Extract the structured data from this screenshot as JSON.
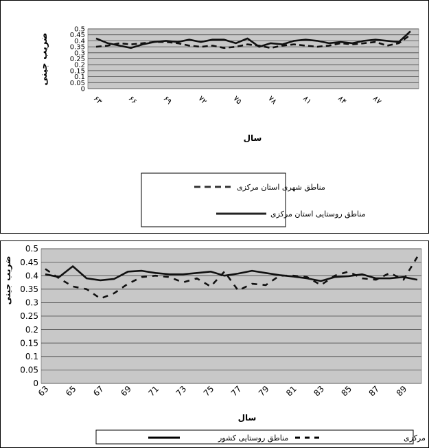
{
  "chart_data": [
    {
      "type": "line",
      "title": "",
      "xlabel": "سال",
      "ylabel": "ضریب جینی",
      "ylim": [
        0,
        0.5
      ],
      "grid": true,
      "yticks": [
        "0",
        "0.05",
        "0.1",
        "0.15",
        "0.2",
        "0.25",
        "0.3",
        "0.35",
        "0.4",
        "0.45",
        "0.5"
      ],
      "xticks": [
        "۶۳",
        "۶۶",
        "۶۹",
        "۷۲",
        "۷۵",
        "۷۸",
        "۸۱",
        "۸۴",
        "۸۷"
      ],
      "x": [
        63,
        64,
        65,
        66,
        67,
        68,
        69,
        70,
        71,
        72,
        73,
        74,
        75,
        76,
        77,
        78,
        79,
        80,
        81,
        82,
        83,
        84,
        85,
        86,
        87,
        88,
        89,
        90
      ],
      "legend_position": "bottom",
      "series": [
        {
          "name": "مناطق شهری استان مرکزی",
          "style": "dashed",
          "values": [
            0.35,
            0.36,
            0.38,
            0.37,
            0.38,
            0.39,
            0.39,
            0.38,
            0.36,
            0.35,
            0.36,
            0.34,
            0.35,
            0.37,
            0.36,
            0.34,
            0.36,
            0.37,
            0.36,
            0.35,
            0.36,
            0.38,
            0.37,
            0.38,
            0.39,
            0.36,
            0.38,
            0.45
          ]
        },
        {
          "name": "مناطق روستایی استان مرکزی",
          "style": "solid",
          "values": [
            0.42,
            0.38,
            0.36,
            0.34,
            0.37,
            0.39,
            0.4,
            0.39,
            0.41,
            0.39,
            0.41,
            0.41,
            0.38,
            0.42,
            0.35,
            0.38,
            0.37,
            0.4,
            0.41,
            0.4,
            0.38,
            0.39,
            0.38,
            0.4,
            0.41,
            0.4,
            0.39,
            0.48
          ]
        }
      ]
    },
    {
      "type": "line",
      "title": "",
      "xlabel": "سال",
      "ylabel": "ضریب جینی",
      "ylim": [
        0,
        0.5
      ],
      "grid": true,
      "yticks": [
        "0",
        "0.05",
        "0.1",
        "0.15",
        "0.2",
        "0.25",
        "0.3",
        "0.35",
        "0.4",
        "0.45",
        "0.5"
      ],
      "xticks": [
        "63",
        "65",
        "67",
        "69",
        "71",
        "73",
        "75",
        "77",
        "79",
        "81",
        "83",
        "85",
        "87",
        "89"
      ],
      "x": [
        63,
        64,
        65,
        66,
        67,
        68,
        69,
        70,
        71,
        72,
        73,
        74,
        75,
        76,
        77,
        78,
        79,
        80,
        81,
        82,
        83,
        84,
        85,
        86,
        87,
        88,
        89,
        90
      ],
      "legend_position": "bottom",
      "series": [
        {
          "name": "مناطق روستایی کشور",
          "style": "solid",
          "values": [
            0.405,
            0.395,
            0.435,
            0.39,
            0.383,
            0.388,
            0.415,
            0.418,
            0.41,
            0.405,
            0.405,
            0.41,
            0.415,
            0.4,
            0.408,
            0.418,
            0.41,
            0.402,
            0.397,
            0.39,
            0.38,
            0.395,
            0.398,
            0.405,
            0.39,
            0.39,
            0.395,
            0.385
          ]
        },
        {
          "name": "مناطق روستایی استان مرکزی",
          "style": "dashed",
          "values": [
            0.425,
            0.39,
            0.36,
            0.35,
            0.315,
            0.335,
            0.37,
            0.395,
            0.4,
            0.395,
            0.375,
            0.39,
            0.36,
            0.415,
            0.345,
            0.37,
            0.365,
            0.4,
            0.4,
            0.395,
            0.365,
            0.4,
            0.415,
            0.39,
            0.385,
            0.41,
            0.385,
            0.47
          ]
        }
      ]
    }
  ]
}
